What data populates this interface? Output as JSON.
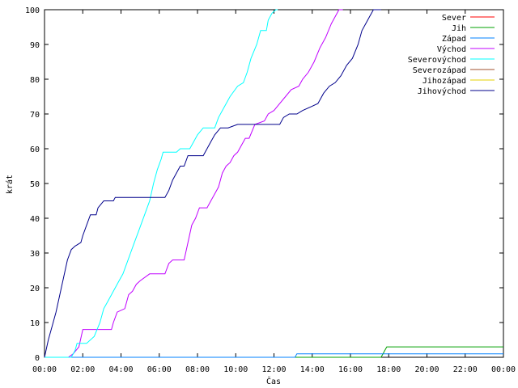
{
  "chart_data": {
    "type": "line",
    "title": "",
    "xlabel": "Čas",
    "ylabel": "krát",
    "xlim": [
      0,
      24
    ],
    "ylim": [
      0,
      100
    ],
    "x_ticks": [
      "00:00",
      "02:00",
      "04:00",
      "06:00",
      "08:00",
      "10:00",
      "12:00",
      "14:00",
      "16:00",
      "18:00",
      "20:00",
      "22:00",
      "00:00"
    ],
    "y_ticks": [
      "0",
      "10",
      "20",
      "30",
      "40",
      "50",
      "60",
      "70",
      "80",
      "90",
      "100"
    ],
    "grid": false,
    "legend_position": "top-right",
    "series": [
      {
        "name": "Sever",
        "color": "#ff0000",
        "points": []
      },
      {
        "name": "Jih",
        "color": "#00a000",
        "points": [
          [
            0,
            0
          ],
          [
            17.6,
            0
          ],
          [
            17.7,
            1
          ],
          [
            17.8,
            2
          ],
          [
            17.9,
            3
          ],
          [
            24,
            3
          ]
        ]
      },
      {
        "name": "Západ",
        "color": "#0080ff",
        "points": [
          [
            0,
            0
          ],
          [
            13.1,
            0
          ],
          [
            13.2,
            1
          ],
          [
            24,
            1
          ]
        ]
      },
      {
        "name": "Východ",
        "color": "#c000ff",
        "points": [
          [
            0,
            0
          ],
          [
            1.25,
            0
          ],
          [
            1.5,
            1
          ],
          [
            1.8,
            3
          ],
          [
            2,
            8
          ],
          [
            3.5,
            8
          ],
          [
            3.6,
            10
          ],
          [
            3.8,
            13
          ],
          [
            4.2,
            14
          ],
          [
            4.4,
            18
          ],
          [
            4.6,
            19
          ],
          [
            4.8,
            21
          ],
          [
            5,
            22
          ],
          [
            5.5,
            24
          ],
          [
            5.7,
            24
          ],
          [
            6.3,
            24
          ],
          [
            6.5,
            27
          ],
          [
            6.7,
            28
          ],
          [
            7.3,
            28
          ],
          [
            7.5,
            33
          ],
          [
            7.7,
            38
          ],
          [
            7.9,
            40
          ],
          [
            8.1,
            43
          ],
          [
            8.5,
            43
          ],
          [
            8.7,
            45
          ],
          [
            8.9,
            47
          ],
          [
            9.1,
            49
          ],
          [
            9.3,
            53
          ],
          [
            9.5,
            55
          ],
          [
            9.7,
            56
          ],
          [
            9.9,
            58
          ],
          [
            10.1,
            59
          ],
          [
            10.3,
            61
          ],
          [
            10.5,
            63
          ],
          [
            10.7,
            63
          ],
          [
            11,
            67
          ],
          [
            11.5,
            68
          ],
          [
            11.7,
            70
          ],
          [
            12,
            71
          ],
          [
            12.3,
            73
          ],
          [
            12.6,
            75
          ],
          [
            12.9,
            77
          ],
          [
            13.3,
            78
          ],
          [
            13.5,
            80
          ],
          [
            13.8,
            82
          ],
          [
            14.1,
            85
          ],
          [
            14.4,
            89
          ],
          [
            14.7,
            92
          ],
          [
            15,
            96
          ],
          [
            15.2,
            98
          ],
          [
            15.4,
            100
          ],
          [
            15.6,
            100
          ]
        ]
      },
      {
        "name": "Severovýchod",
        "color": "#00ffff",
        "points": [
          [
            0,
            0
          ],
          [
            1.4,
            0
          ],
          [
            1.6,
            2
          ],
          [
            1.7,
            4
          ],
          [
            2.2,
            4
          ],
          [
            2.6,
            6
          ],
          [
            2.9,
            10
          ],
          [
            3.1,
            14
          ],
          [
            3.3,
            16
          ],
          [
            3.5,
            18
          ],
          [
            3.7,
            20
          ],
          [
            3.9,
            22
          ],
          [
            4.1,
            24
          ],
          [
            4.3,
            27
          ],
          [
            4.5,
            30
          ],
          [
            4.7,
            33
          ],
          [
            4.9,
            36
          ],
          [
            5.1,
            39
          ],
          [
            5.3,
            42
          ],
          [
            5.5,
            45
          ],
          [
            5.7,
            50
          ],
          [
            5.9,
            54
          ],
          [
            6.1,
            57
          ],
          [
            6.2,
            59
          ],
          [
            6.9,
            59
          ],
          [
            7.1,
            60
          ],
          [
            7.6,
            60
          ],
          [
            7.8,
            62
          ],
          [
            8,
            64
          ],
          [
            8.3,
            66
          ],
          [
            8.9,
            66
          ],
          [
            9.1,
            69
          ],
          [
            9.4,
            72
          ],
          [
            9.7,
            75
          ],
          [
            10.1,
            78
          ],
          [
            10.4,
            79
          ],
          [
            10.6,
            82
          ],
          [
            10.8,
            86
          ],
          [
            11.1,
            90
          ],
          [
            11.3,
            94
          ],
          [
            11.6,
            94
          ],
          [
            11.7,
            97
          ],
          [
            11.9,
            99
          ],
          [
            12.1,
            100
          ],
          [
            12.2,
            100
          ]
        ]
      },
      {
        "name": "Severozápad",
        "color": "#a0522d",
        "points": []
      },
      {
        "name": "Jihozápad",
        "color": "#e6d200",
        "points": []
      },
      {
        "name": "Jihovýchod",
        "color": "#00008b",
        "points": [
          [
            0,
            0
          ],
          [
            0.2,
            5
          ],
          [
            0.4,
            9
          ],
          [
            0.6,
            13
          ],
          [
            0.8,
            18
          ],
          [
            1,
            23
          ],
          [
            1.2,
            28
          ],
          [
            1.4,
            31
          ],
          [
            1.6,
            32
          ],
          [
            1.9,
            33
          ],
          [
            2,
            35
          ],
          [
            2.2,
            38
          ],
          [
            2.4,
            41
          ],
          [
            2.7,
            41
          ],
          [
            2.8,
            43
          ],
          [
            3.1,
            45
          ],
          [
            3.6,
            45
          ],
          [
            3.7,
            46
          ],
          [
            6.3,
            46
          ],
          [
            6.5,
            48
          ],
          [
            6.7,
            51
          ],
          [
            6.9,
            53
          ],
          [
            7.1,
            55
          ],
          [
            7.3,
            55
          ],
          [
            7.5,
            58
          ],
          [
            8.3,
            58
          ],
          [
            8.5,
            60
          ],
          [
            8.7,
            62
          ],
          [
            8.9,
            64
          ],
          [
            9.2,
            66
          ],
          [
            9.6,
            66
          ],
          [
            10.1,
            67
          ],
          [
            12.3,
            67
          ],
          [
            12.5,
            69
          ],
          [
            12.8,
            70
          ],
          [
            13.2,
            70
          ],
          [
            13.5,
            71
          ],
          [
            13.9,
            72
          ],
          [
            14.3,
            73
          ],
          [
            14.6,
            76
          ],
          [
            14.9,
            78
          ],
          [
            15.2,
            79
          ],
          [
            15.5,
            81
          ],
          [
            15.8,
            84
          ],
          [
            16.1,
            86
          ],
          [
            16.4,
            90
          ],
          [
            16.6,
            94
          ],
          [
            16.8,
            96
          ],
          [
            17,
            98
          ],
          [
            17.2,
            100
          ],
          [
            17.6,
            100
          ]
        ]
      }
    ]
  }
}
